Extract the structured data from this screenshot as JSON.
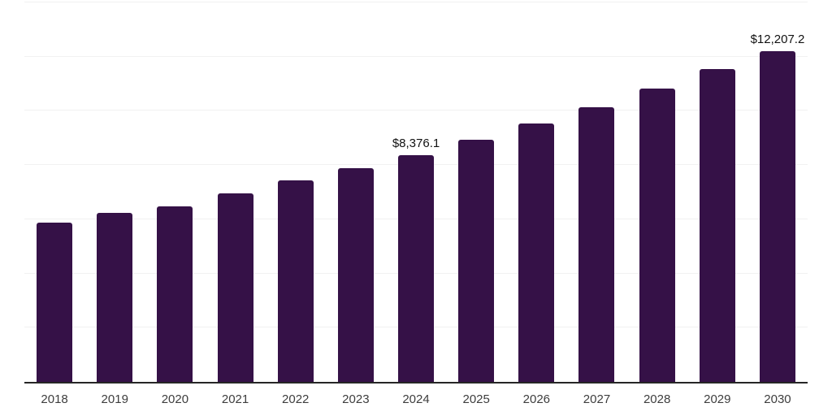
{
  "chart_data": {
    "type": "bar",
    "title": "",
    "xlabel": "",
    "ylabel": "",
    "categories": [
      "2018",
      "2019",
      "2020",
      "2021",
      "2022",
      "2023",
      "2024",
      "2025",
      "2026",
      "2027",
      "2028",
      "2029",
      "2030"
    ],
    "values": [
      5890,
      6240,
      6490,
      6970,
      7450,
      7890,
      8376.1,
      8920,
      9520,
      10130,
      10830,
      11530,
      12207.2
    ],
    "data_labels": {
      "2024": "$8,376.1",
      "2030": "$12,207.2"
    },
    "ylim": [
      0,
      14000
    ],
    "gridline_step": 2000,
    "grid": true,
    "legend": "none",
    "colors": {
      "bar": "#351147",
      "gridline": "#f1f1f1",
      "axis_line": "#262626",
      "tick_label": "#3d3d3d",
      "data_label": "#111111",
      "background": "#ffffff"
    }
  }
}
